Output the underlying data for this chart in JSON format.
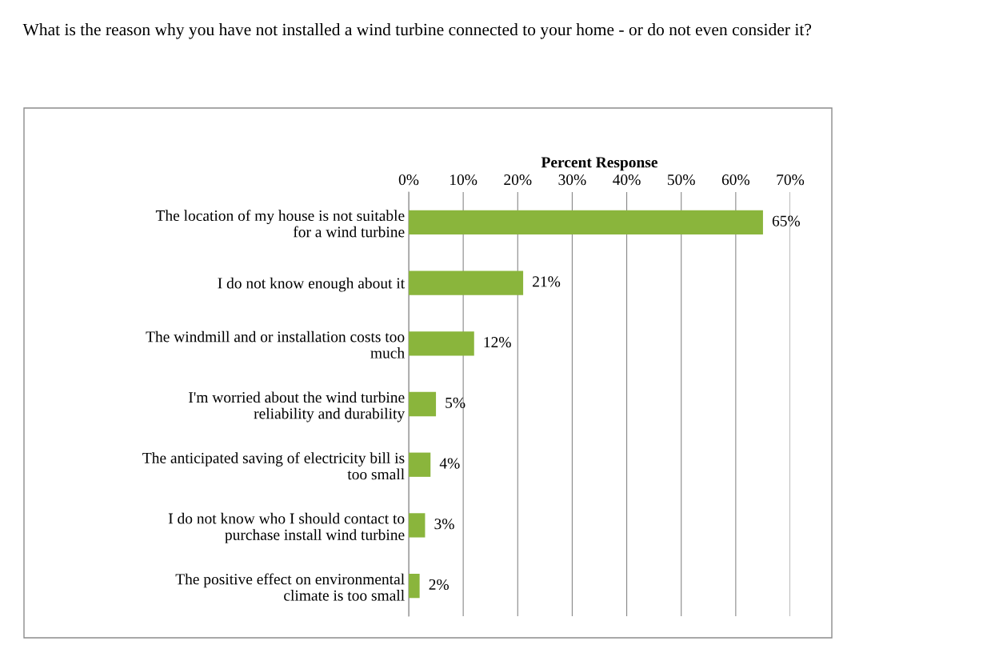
{
  "chart_data": {
    "type": "bar",
    "orientation": "horizontal",
    "title": "What is the reason why you have not installed a wind turbine connected to your home - or do not even consider it?",
    "xlabel": "Percent Response",
    "categories": [
      "The location of my house is not suitable\nfor a wind turbine",
      "I do not know enough about it",
      "The windmill and or installation costs too\nmuch",
      "I'm worried about the wind turbine\nreliability and durability",
      "The anticipated saving of electricity bill is\ntoo small",
      "I do not know who I should contact to\npurchase install wind turbine",
      "The positive effect on environmental\nclimate is too small"
    ],
    "values": [
      65,
      21,
      12,
      5,
      4,
      3,
      2
    ],
    "value_labels": [
      "65%",
      "21%",
      "12%",
      "5%",
      "4%",
      "3%",
      "2%"
    ],
    "color": "#8ab53c",
    "xlim": [
      0,
      70
    ],
    "xticks": [
      {
        "value": 0,
        "label": "0%"
      },
      {
        "value": 10,
        "label": "10%"
      },
      {
        "value": 20,
        "label": "20%"
      },
      {
        "value": 30,
        "label": "30%"
      },
      {
        "value": 40,
        "label": "40%"
      },
      {
        "value": 50,
        "label": "50%"
      },
      {
        "value": 60,
        "label": "60%"
      },
      {
        "value": 70,
        "label": "70%"
      }
    ],
    "grid": "x",
    "legend": false
  }
}
